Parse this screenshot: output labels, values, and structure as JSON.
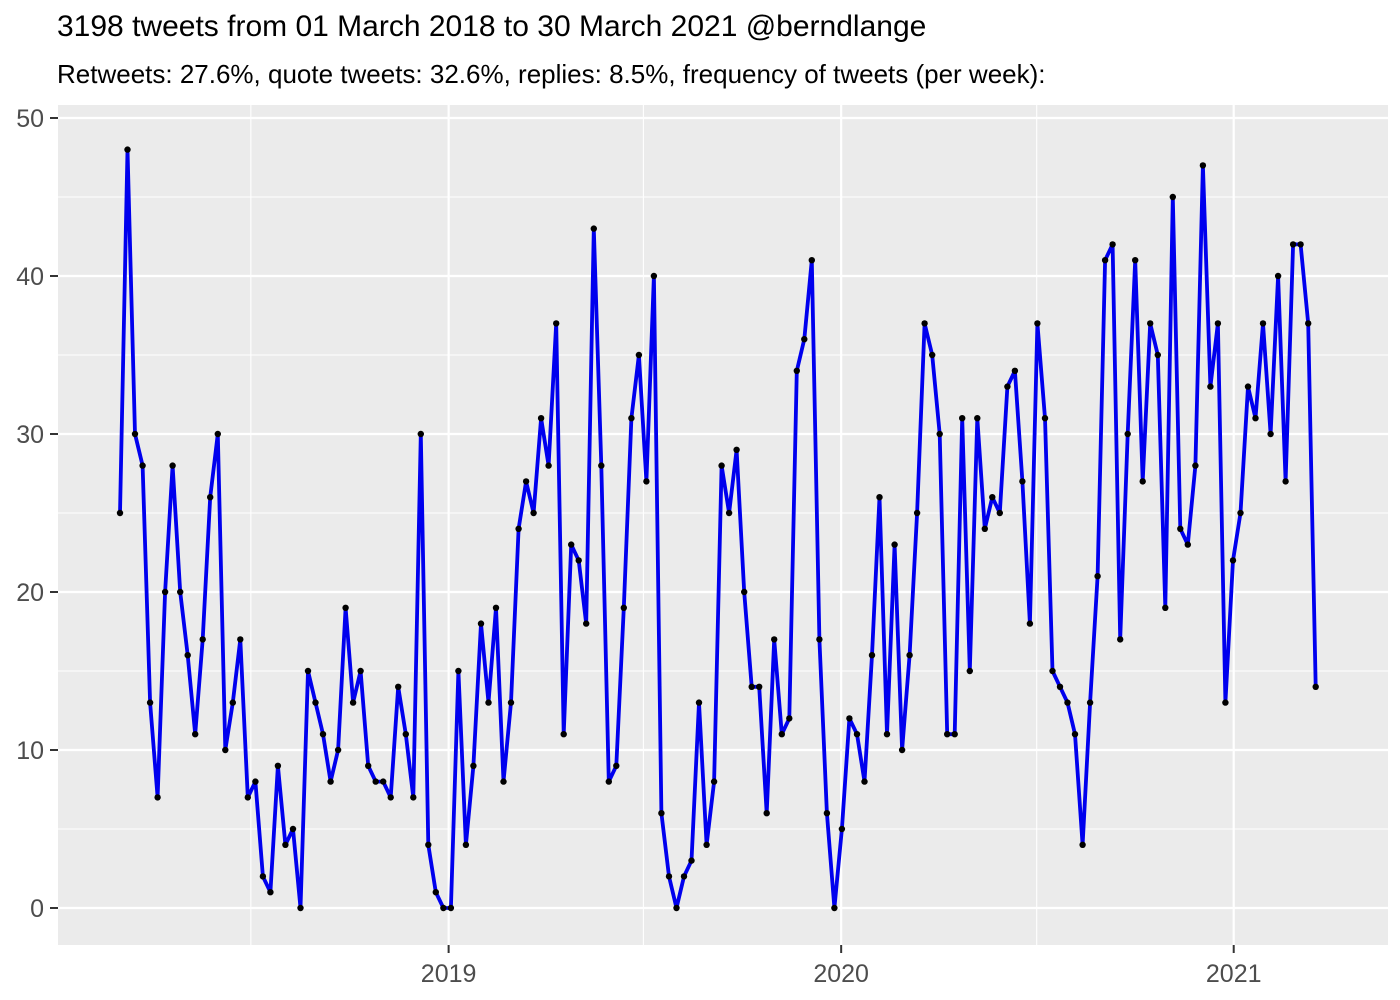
{
  "chart_data": {
    "type": "line",
    "title": "3198 tweets from 01 March 2018 to 30 March 2021 @berndlange",
    "subtitle": "Retweets: 27.6%, quote tweets: 32.6%, replies: 8.5%, frequency of tweets (per week):",
    "series": [
      {
        "name": "tweets-per-week",
        "values": [
          25,
          48,
          30,
          28,
          13,
          7,
          20,
          28,
          20,
          16,
          11,
          17,
          26,
          30,
          10,
          13,
          17,
          7,
          8,
          2,
          1,
          9,
          4,
          5,
          0,
          15,
          13,
          11,
          8,
          10,
          19,
          13,
          15,
          9,
          8,
          8,
          7,
          14,
          11,
          7,
          30,
          4,
          1,
          0,
          0,
          15,
          4,
          9,
          18,
          13,
          19,
          8,
          13,
          24,
          27,
          25,
          31,
          28,
          37,
          11,
          23,
          22,
          18,
          43,
          28,
          8,
          9,
          19,
          31,
          35,
          27,
          40,
          6,
          2,
          0,
          2,
          3,
          13,
          4,
          8,
          28,
          25,
          29,
          20,
          14,
          14,
          6,
          17,
          11,
          12,
          34,
          36,
          41,
          17,
          6,
          0,
          5,
          12,
          11,
          8,
          16,
          26,
          11,
          23,
          10,
          16,
          25,
          37,
          35,
          30,
          11,
          11,
          31,
          15,
          31,
          24,
          26,
          25,
          33,
          34,
          27,
          18,
          37,
          31,
          15,
          14,
          13,
          11,
          4,
          13,
          21,
          41,
          42,
          17,
          30,
          41,
          27,
          37,
          35,
          19,
          45,
          24,
          23,
          28,
          47,
          33,
          37,
          13,
          22,
          25,
          33,
          31,
          37,
          30,
          40,
          27,
          42,
          42,
          37,
          14
        ]
      }
    ],
    "x_axis": {
      "tick_labels": [
        "2019",
        "2020",
        "2021"
      ],
      "tick_week_index": [
        43.7,
        95.9,
        148.1
      ],
      "minor_week_index": [
        17.4,
        69.6,
        121.9
      ]
    },
    "y_axis": {
      "tick_labels": [
        "0",
        "10",
        "20",
        "30",
        "40",
        "50"
      ],
      "ticks": [
        0,
        10,
        20,
        30,
        40,
        50
      ],
      "minor_ticks": [
        5,
        15,
        25,
        35,
        45
      ],
      "ylim": [
        0,
        50
      ]
    },
    "style": {
      "line_color": "#0000EE",
      "point_color": "#000000",
      "panel_bg": "#EBEBEB",
      "grid_color": "#FFFFFF",
      "axis_text_color": "#4D4D4D",
      "tick_mark_color": "#333333"
    }
  }
}
